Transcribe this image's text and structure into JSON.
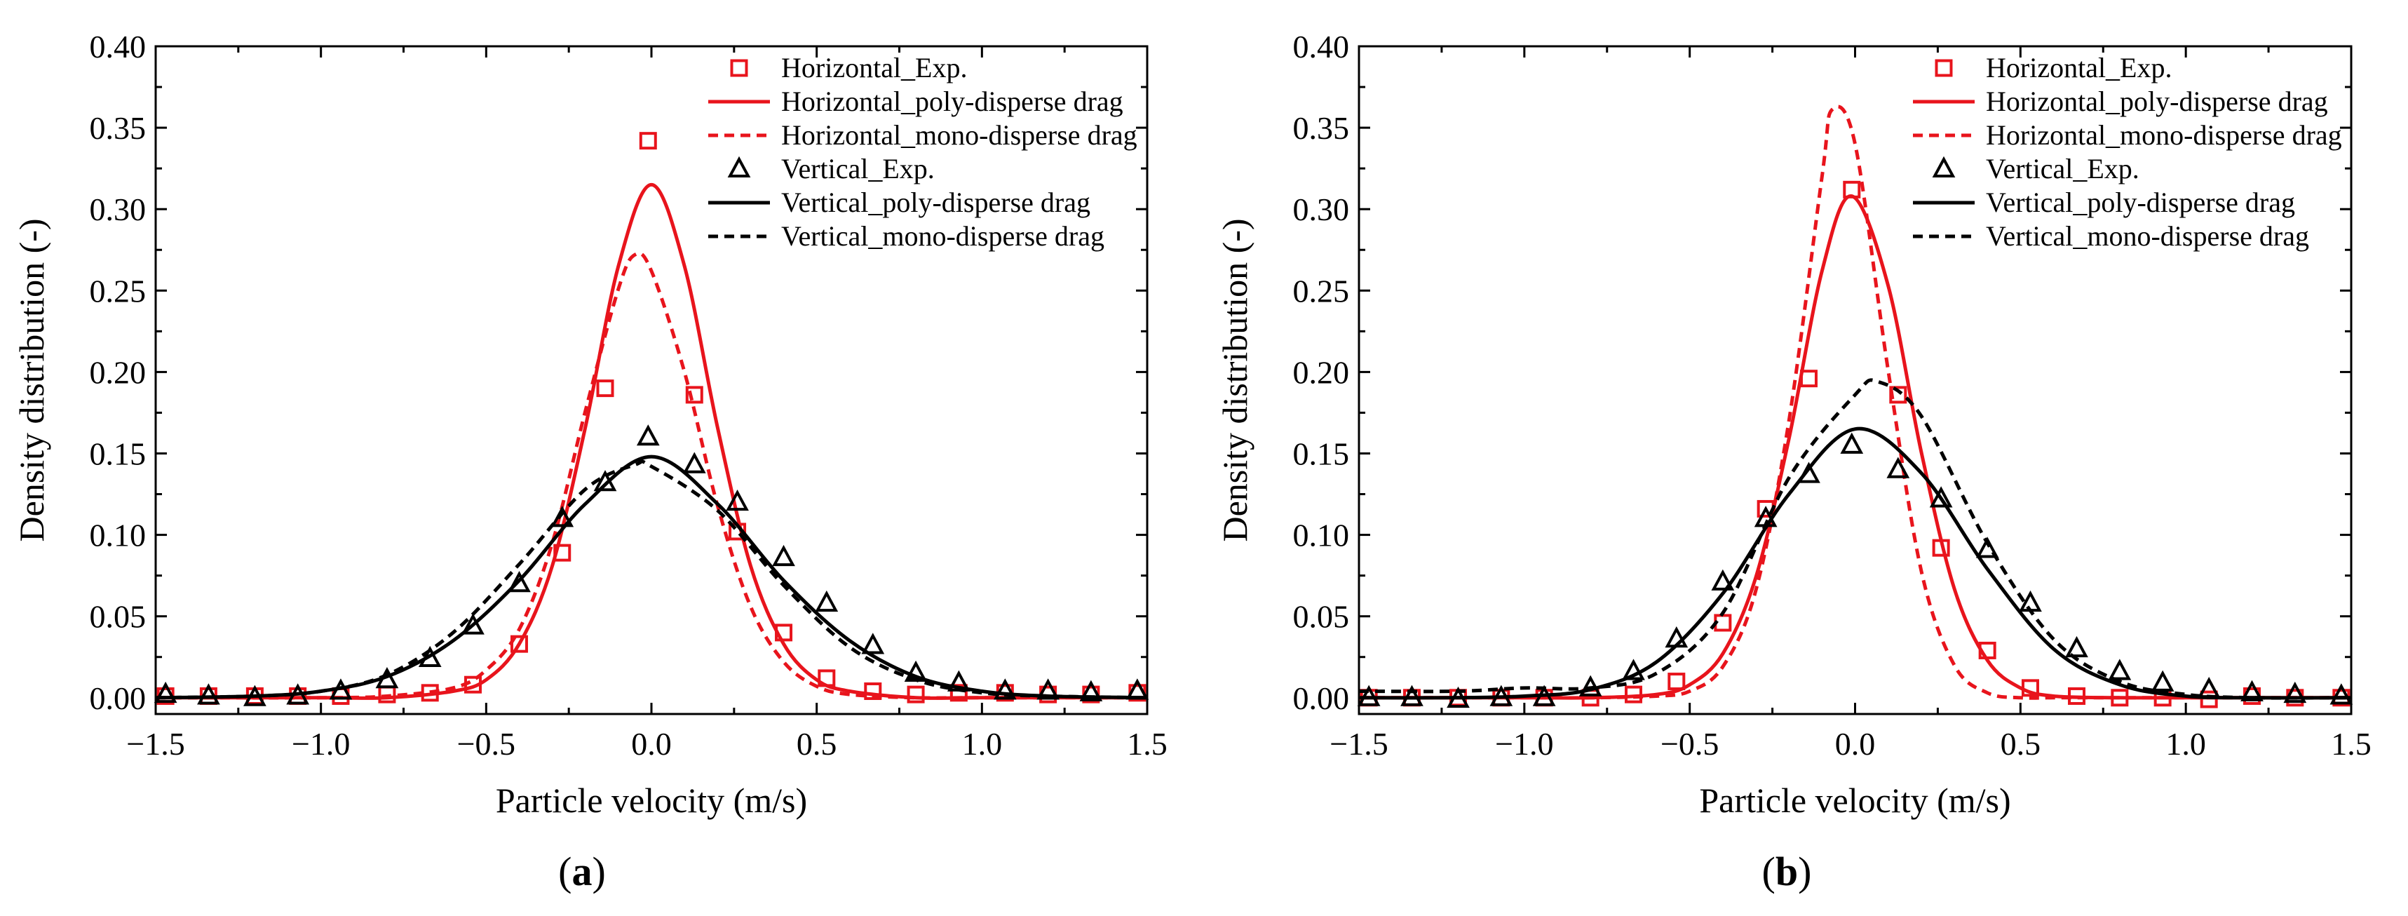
{
  "chart_data": [
    {
      "type": "line",
      "panel_label": "(a)",
      "xlabel": "Particle velocity (m/s)",
      "ylabel": "Density distribution (-)",
      "xlim": [
        -1.5,
        1.5
      ],
      "ylim": [
        -0.01,
        0.4
      ],
      "xticks": [
        "−1.5",
        "−1.0",
        "−0.5",
        "0.0",
        "0.5",
        "1.0",
        "1.5"
      ],
      "yticks": [
        "0.00",
        "0.05",
        "0.10",
        "0.15",
        "0.20",
        "0.25",
        "0.30",
        "0.35",
        "0.40"
      ],
      "legend": "top-right",
      "series": [
        {
          "name": "Horizontal_Exp.",
          "kind": "marker",
          "marker": "square",
          "color": "#e8141c",
          "x": [
            -1.47,
            -1.34,
            -1.2,
            -1.07,
            -0.94,
            -0.8,
            -0.67,
            -0.54,
            -0.4,
            -0.27,
            -0.14,
            -0.01,
            0.13,
            0.26,
            0.4,
            0.53,
            0.67,
            0.8,
            0.93,
            1.07,
            1.2,
            1.33,
            1.47
          ],
          "y": [
            0.001,
            0.001,
            0.001,
            0.001,
            0.001,
            0.002,
            0.003,
            0.008,
            0.033,
            0.089,
            0.19,
            0.342,
            0.186,
            0.102,
            0.04,
            0.012,
            0.004,
            0.002,
            0.003,
            0.003,
            0.002,
            0.002,
            0.003
          ]
        },
        {
          "name": "Horizontal_poly-disperse drag",
          "kind": "line",
          "dash": "solid",
          "color": "#e8141c",
          "x": [
            -1.5,
            -1.0,
            -0.8,
            -0.6,
            -0.5,
            -0.4,
            -0.3,
            -0.2,
            -0.1,
            0.0,
            0.1,
            0.2,
            0.3,
            0.4,
            0.5,
            0.6,
            0.8,
            1.0,
            1.5
          ],
          "y": [
            0.0,
            0.0,
            0.0,
            0.004,
            0.011,
            0.033,
            0.081,
            0.166,
            0.265,
            0.315,
            0.265,
            0.166,
            0.081,
            0.033,
            0.011,
            0.004,
            0.0,
            0.0,
            0.0
          ]
        },
        {
          "name": "Horizontal_mono-disperse drag",
          "kind": "line",
          "dash": "dashed",
          "color": "#e8141c",
          "x": [
            -1.5,
            -1.0,
            -0.8,
            -0.6,
            -0.5,
            -0.4,
            -0.3,
            -0.2,
            -0.1,
            -0.05,
            0.0,
            0.1,
            0.2,
            0.3,
            0.4,
            0.5,
            0.6,
            0.8,
            1.0,
            1.5
          ],
          "y": [
            0.0,
            0.0,
            0.001,
            0.006,
            0.017,
            0.042,
            0.095,
            0.176,
            0.251,
            0.272,
            0.262,
            0.2,
            0.118,
            0.056,
            0.022,
            0.007,
            0.002,
            0.0,
            0.0,
            0.0
          ]
        },
        {
          "name": "Vertical_Exp.",
          "kind": "marker",
          "marker": "triangle",
          "color": "#000000",
          "x": [
            -1.47,
            -1.34,
            -1.2,
            -1.07,
            -0.94,
            -0.8,
            -0.67,
            -0.54,
            -0.4,
            -0.27,
            -0.14,
            -0.01,
            0.13,
            0.26,
            0.4,
            0.53,
            0.67,
            0.8,
            0.93,
            1.07,
            1.2,
            1.33,
            1.47
          ],
          "y": [
            0.002,
            0.001,
            0.0,
            0.001,
            0.004,
            0.011,
            0.024,
            0.044,
            0.07,
            0.11,
            0.132,
            0.16,
            0.143,
            0.12,
            0.086,
            0.058,
            0.032,
            0.015,
            0.009,
            0.004,
            0.004,
            0.003,
            0.004
          ]
        },
        {
          "name": "Vertical_poly-disperse drag",
          "kind": "line",
          "dash": "solid",
          "color": "#000000",
          "x": [
            -1.5,
            -1.2,
            -1.0,
            -0.8,
            -0.6,
            -0.4,
            -0.2,
            0.0,
            0.2,
            0.4,
            0.6,
            0.8,
            1.0,
            1.2,
            1.5
          ],
          "y": [
            0.0,
            0.001,
            0.004,
            0.013,
            0.035,
            0.072,
            0.119,
            0.148,
            0.119,
            0.072,
            0.035,
            0.013,
            0.004,
            0.001,
            0.0
          ]
        },
        {
          "name": "Vertical_mono-disperse drag",
          "kind": "line",
          "dash": "dashed",
          "color": "#000000",
          "x": [
            -1.5,
            -1.2,
            -1.0,
            -0.8,
            -0.6,
            -0.4,
            -0.2,
            -0.05,
            0.0,
            0.2,
            0.4,
            0.6,
            0.8,
            1.0,
            1.2,
            1.5
          ],
          "y": [
            0.0,
            0.001,
            0.004,
            0.014,
            0.04,
            0.082,
            0.128,
            0.143,
            0.142,
            0.115,
            0.069,
            0.031,
            0.011,
            0.003,
            0.001,
            0.0
          ]
        }
      ]
    },
    {
      "type": "line",
      "panel_label": "(b)",
      "xlabel": "Particle velocity (m/s)",
      "ylabel": "Density distribution (-)",
      "xlim": [
        -1.5,
        1.5
      ],
      "ylim": [
        -0.01,
        0.4
      ],
      "xticks": [
        "−1.5",
        "−1.0",
        "−0.5",
        "0.0",
        "0.5",
        "1.0",
        "1.5"
      ],
      "yticks": [
        "0.00",
        "0.05",
        "0.10",
        "0.15",
        "0.20",
        "0.25",
        "0.30",
        "0.35",
        "0.40"
      ],
      "legend": "top-right",
      "series": [
        {
          "name": "Horizontal_Exp.",
          "kind": "marker",
          "marker": "square",
          "color": "#e8141c",
          "x": [
            -1.47,
            -1.34,
            -1.2,
            -1.07,
            -0.94,
            -0.8,
            -0.67,
            -0.54,
            -0.4,
            -0.27,
            -0.14,
            -0.01,
            0.13,
            0.26,
            0.4,
            0.53,
            0.67,
            0.8,
            0.93,
            1.07,
            1.2,
            1.33,
            1.47
          ],
          "y": [
            0.0,
            0.0,
            0.0,
            0.0,
            0.0,
            0.0,
            0.002,
            0.01,
            0.046,
            0.116,
            0.196,
            0.312,
            0.186,
            0.092,
            0.029,
            0.006,
            0.001,
            0.0,
            0.0,
            -0.001,
            0.001,
            0.0,
            0.0
          ]
        },
        {
          "name": "Horizontal_poly-disperse drag",
          "kind": "line",
          "dash": "solid",
          "color": "#e8141c",
          "x": [
            -1.5,
            -1.0,
            -0.8,
            -0.6,
            -0.5,
            -0.4,
            -0.3,
            -0.2,
            -0.1,
            -0.01,
            0.1,
            0.2,
            0.3,
            0.4,
            0.5,
            0.6,
            0.8,
            1.0,
            1.5
          ],
          "y": [
            0.0,
            0.0,
            0.0,
            0.002,
            0.008,
            0.027,
            0.074,
            0.159,
            0.262,
            0.308,
            0.253,
            0.151,
            0.067,
            0.023,
            0.006,
            0.001,
            0.0,
            0.0,
            0.0
          ]
        },
        {
          "name": "Horizontal_mono-disperse drag",
          "kind": "line",
          "dash": "dashed",
          "color": "#e8141c",
          "x": [
            -1.5,
            -1.0,
            -0.8,
            -0.6,
            -0.5,
            -0.4,
            -0.3,
            -0.2,
            -0.1,
            -0.07,
            0.0,
            0.1,
            0.2,
            0.3,
            0.4,
            0.5,
            0.6,
            0.8,
            1.0,
            1.5
          ],
          "y": [
            0.0,
            0.0,
            0.0,
            0.001,
            0.004,
            0.019,
            0.066,
            0.17,
            0.32,
            0.361,
            0.34,
            0.201,
            0.078,
            0.02,
            0.003,
            0.0,
            0.0,
            0.0,
            0.0,
            0.0
          ]
        },
        {
          "name": "Vertical_Exp.",
          "kind": "marker",
          "marker": "triangle",
          "color": "#000000",
          "x": [
            -1.47,
            -1.34,
            -1.2,
            -1.07,
            -0.94,
            -0.8,
            -0.67,
            -0.54,
            -0.4,
            -0.27,
            -0.14,
            -0.01,
            0.13,
            0.26,
            0.4,
            0.53,
            0.67,
            0.8,
            0.93,
            1.07,
            1.2,
            1.33,
            1.47
          ],
          "y": [
            0.0,
            0.0,
            -0.001,
            0.0,
            0.0,
            0.006,
            0.016,
            0.036,
            0.071,
            0.11,
            0.137,
            0.155,
            0.14,
            0.122,
            0.091,
            0.058,
            0.03,
            0.016,
            0.009,
            0.005,
            0.003,
            0.002,
            0.001
          ]
        },
        {
          "name": "Vertical_poly-disperse drag",
          "kind": "line",
          "dash": "solid",
          "color": "#000000",
          "x": [
            -1.5,
            -1.2,
            -1.0,
            -0.8,
            -0.6,
            -0.4,
            -0.2,
            0.0,
            0.2,
            0.4,
            0.6,
            0.8,
            1.0,
            1.2,
            1.5
          ],
          "y": [
            0.0,
            0.0,
            0.001,
            0.005,
            0.022,
            0.064,
            0.125,
            0.165,
            0.138,
            0.079,
            0.03,
            0.008,
            0.001,
            0.0,
            0.0
          ]
        },
        {
          "name": "Vertical_mono-disperse drag",
          "kind": "line",
          "dash": "dashed",
          "color": "#000000",
          "x": [
            -1.5,
            -1.2,
            -1.0,
            -0.8,
            -0.6,
            -0.4,
            -0.2,
            0.0,
            0.07,
            0.2,
            0.4,
            0.6,
            0.8,
            1.0,
            1.2,
            1.5
          ],
          "y": [
            0.004,
            0.004,
            0.006,
            0.006,
            0.015,
            0.052,
            0.135,
            0.186,
            0.194,
            0.173,
            0.095,
            0.036,
            0.01,
            0.002,
            0.0,
            0.0
          ]
        }
      ]
    }
  ]
}
